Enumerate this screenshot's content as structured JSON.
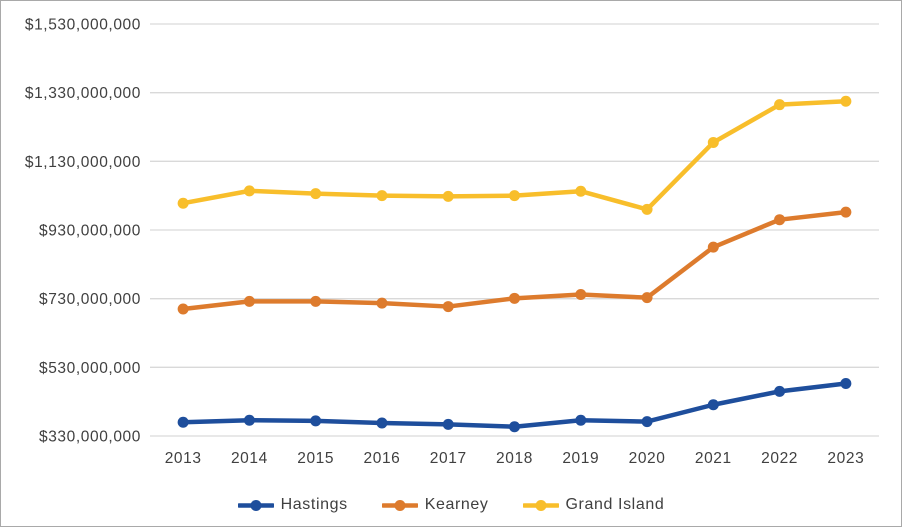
{
  "page": {
    "background_color": "#FFFFFF",
    "frame_border_color": "#A9A9A9"
  },
  "chart_data": {
    "type": "line",
    "title": "",
    "xlabel": "",
    "ylabel": "",
    "x": [
      "2013",
      "2014",
      "2015",
      "2016",
      "2017",
      "2018",
      "2019",
      "2020",
      "2021",
      "2022",
      "2023"
    ],
    "series": [
      {
        "name": "Hastings",
        "color": "#1E4E9C",
        "values": [
          370000000,
          376000000,
          374000000,
          368000000,
          364000000,
          357000000,
          376000000,
          372000000,
          421000000,
          460000000,
          483000000
        ]
      },
      {
        "name": "Kearney",
        "color": "#DD7B2D",
        "values": [
          700000000,
          722000000,
          722000000,
          717000000,
          707000000,
          731000000,
          742000000,
          733000000,
          880000000,
          960000000,
          982000000
        ]
      },
      {
        "name": "Grand Island",
        "color": "#F8BE2B",
        "values": [
          1008000000,
          1044000000,
          1036000000,
          1030000000,
          1028000000,
          1030000000,
          1043000000,
          990000000,
          1185000000,
          1295000000,
          1305000000
        ]
      }
    ],
    "ylim": [
      330000000,
      1530000000
    ],
    "y_tick_interval": 200000000,
    "y_tick_labels": [
      "$330,000,000",
      "$530,000,000",
      "$730,000,000",
      "$930,000,000",
      "$1,130,000,000",
      "$1,330,000,000",
      "$1,530,000,000"
    ],
    "grid": "horizontal",
    "gridline_color": "#D9D9D9",
    "axis_text_color": "#404040",
    "legend_position": "bottom",
    "marker": "circle",
    "line_width": 4.5,
    "marker_radius": 5.5
  }
}
